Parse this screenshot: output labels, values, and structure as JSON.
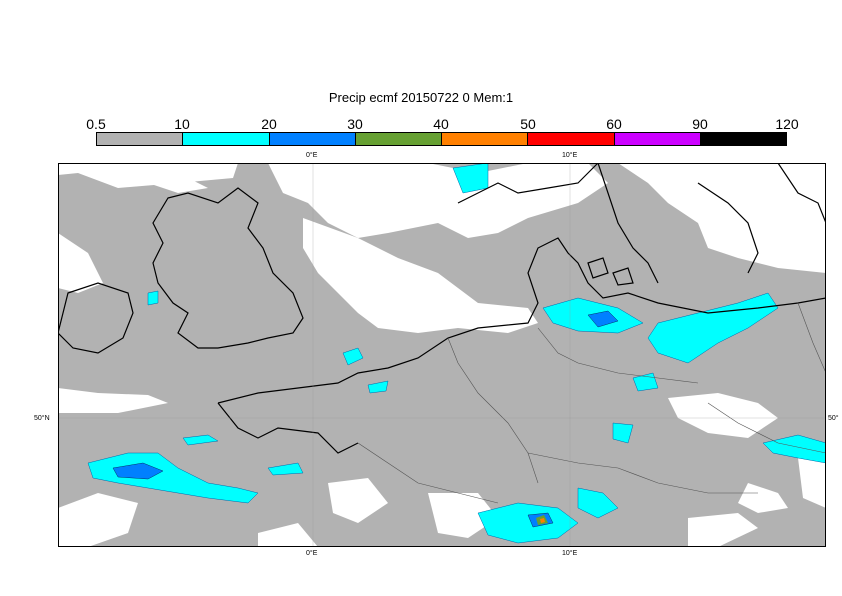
{
  "title": "Precip ecmf 20150722 0 Mem:1",
  "colorbar": {
    "labels": [
      "0.5",
      "10",
      "20",
      "30",
      "40",
      "50",
      "60",
      "90",
      "120"
    ],
    "colors": [
      "#b2b2b2",
      "#00ffff",
      "#0080ff",
      "#66a032",
      "#ff8000",
      "#ff0000",
      "#cc00ff",
      "#000000"
    ]
  },
  "coords": {
    "top_left_lon": "0°E",
    "top_right_lon": "10°E",
    "bottom_left_lon": "0°E",
    "bottom_right_lon": "10°E",
    "left_lat": "50°N",
    "right_lat": "50°"
  },
  "palette": {
    "land_precip": "#b2b2b2",
    "dry": "#ffffff",
    "cyan": "#00ffff",
    "blue": "#0080ff",
    "coast": "#000000"
  }
}
